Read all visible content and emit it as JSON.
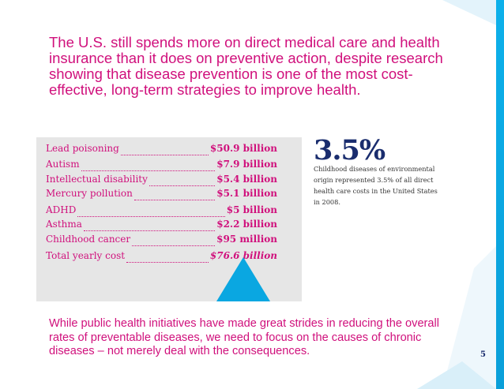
{
  "headline": "The U.S. still spends more on direct medical care and health insurance than it does on preventive action, despite research showing that disease prevention is one of the most cost-effective, long-term strategies to improve health.",
  "costs": [
    {
      "label": "Lead poisoning",
      "value": "$50.9 billion"
    },
    {
      "label": "Autism",
      "value": "$7.9 billion"
    },
    {
      "label": "Intellectual disability",
      "value": "$5.4 billion"
    },
    {
      "label": "Mercury pollution",
      "value": "$5.1 billion"
    },
    {
      "label": "ADHD",
      "value": "$5 billion"
    },
    {
      "label": "Asthma",
      "value": "$2.2 billion"
    },
    {
      "label": "Childhood cancer",
      "value": "$95 million"
    },
    {
      "label": "Total yearly cost",
      "value": "$76.6 billion"
    }
  ],
  "stat": {
    "percent": "3.5%",
    "note": "Childhood diseases of environmental origin represented 3.5% of all direct health care costs in the United States in 2008."
  },
  "closing": "While public health initiatives have made great strides in reducing the overall rates of preventable diseases, we need to focus on the causes of chronic diseases – not merely deal with the consequences.",
  "page_number": "5",
  "colors": {
    "accent": "#d0107c",
    "navy": "#1a2d6e",
    "blue": "#0aa7e1",
    "panel": "#e6e6e6"
  }
}
